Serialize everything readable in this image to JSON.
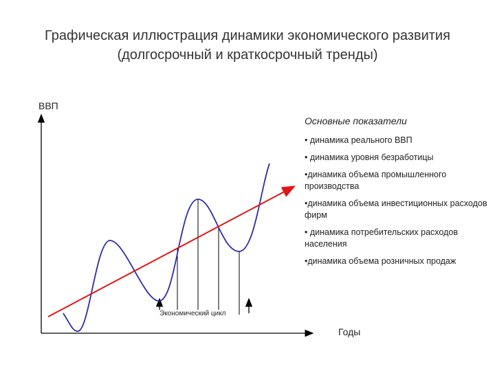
{
  "title": {
    "line1": "Графическая иллюстрация динамики экономического развития",
    "line2": "(долгосрочный и краткосрочный тренды)"
  },
  "diagram": {
    "y_axis_label": "ВВП",
    "x_axis_label": "Годы",
    "cycle_label": "Экономический цикл",
    "colors": {
      "wave": "#2a2aa8",
      "trend": "#e01515",
      "axis": "#000000"
    }
  },
  "indicators": {
    "heading": "Основные показатели",
    "items": [
      "• динамика реального ВВП",
      "• динамика уровня безработицы",
      "•динамика объема промышленного производства",
      "•динамика объема инвестиционных расходов фирм",
      "• динамика потребительских расходов населения",
      "•динамика объема розничных продаж"
    ]
  }
}
